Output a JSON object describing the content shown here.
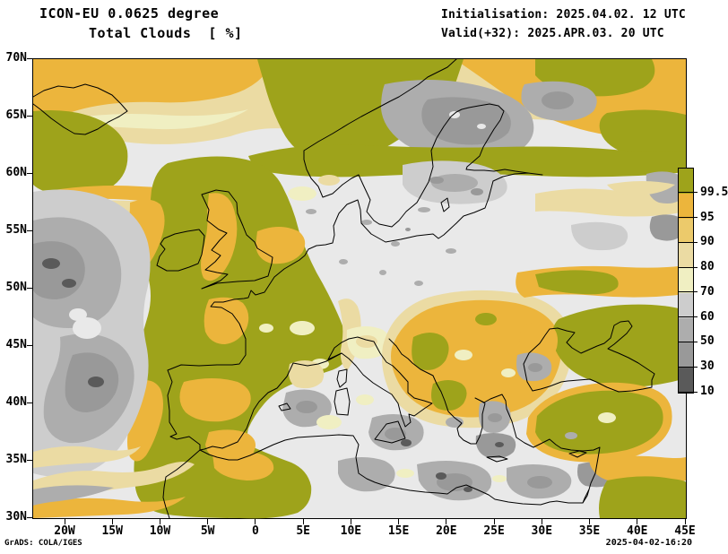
{
  "header": {
    "model_title": "ICON-EU 0.0625 degree",
    "field_title": "Total Clouds  [ %]",
    "initialisation": "Initialisation: 2025.04.02. 12 UTC",
    "valid": "Valid(+32): 2025.APR.03. 20 UTC"
  },
  "axes": {
    "lat_labels": [
      "70N",
      "65N",
      "60N",
      "55N",
      "50N",
      "45N",
      "40N",
      "35N",
      "30N"
    ],
    "lon_labels": [
      "20W",
      "15W",
      "10W",
      "5W",
      "0",
      "5E",
      "10E",
      "15E",
      "20E",
      "25E",
      "30E",
      "35E",
      "40E",
      "45E"
    ]
  },
  "colorbar": {
    "unit": "%",
    "tick_labels": [
      "99.5",
      "95",
      "90",
      "80",
      "70",
      "60",
      "50",
      "30",
      "10"
    ],
    "segment_colors_top_to_bottom": [
      "#9EA31B",
      "#ECB53C",
      "#ECCA6B",
      "#EBDBA3",
      "#F0EFC2",
      "#CDCDCD",
      "#ADADAD",
      "#999999",
      "#5A5A5A"
    ]
  },
  "map_palette": {
    "clear_background": "#E9E9E9",
    "coastline": "#000000",
    "overcast_olive": "#9EA31B",
    "cloud_orange": "#ECB53C",
    "cloud_gold": "#ECCA6B",
    "cloud_tan": "#EBDBA3",
    "cloud_pale": "#F0EFC2",
    "gray_60_70": "#CDCDCD",
    "gray_50_60": "#ADADAD",
    "gray_30_50": "#999999",
    "gray_10_30": "#5A5A5A"
  },
  "footer": {
    "left": "GrADS: COLA/IGES",
    "right": "2025-04-02-16:20"
  }
}
